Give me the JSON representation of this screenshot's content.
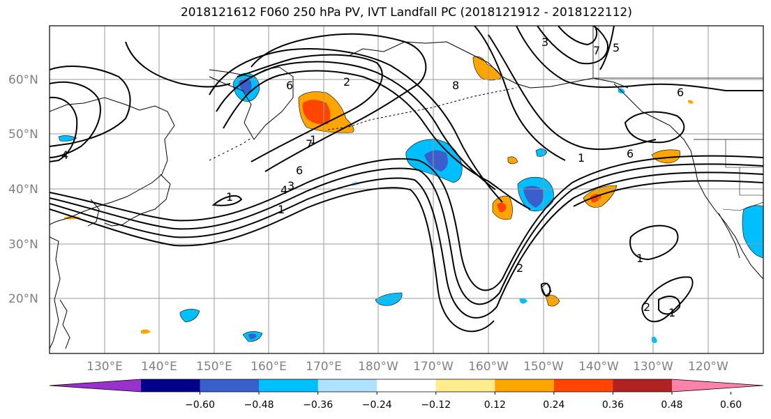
{
  "title": "2018121612 F060 250 hPa PV, IVT Landfall PC (2018121912 - 2018122112)",
  "lat_labels": [
    "60°N",
    "50°N",
    "40°N",
    "30°N",
    "20°N"
  ],
  "lon_labels": [
    "130°E",
    "140°E",
    "150°E",
    "160°E",
    "170°E",
    "180°W",
    "170°W",
    "160°W",
    "150°W",
    "140°W",
    "130°W",
    "120°W"
  ],
  "colorbar": {
    "colors": [
      "#9932cc",
      "#00008b",
      "#3a5fcd",
      "#00bfff",
      "#b0e2ff",
      "#ffffff",
      "#ffec8b",
      "#ffa500",
      "#ff4500",
      "#b22222",
      "#ff82ab"
    ],
    "tick_labels": [
      "−0.60",
      "−0.48",
      "−0.36",
      "−0.24",
      "−0.12",
      "0.12",
      "0.24",
      "0.36",
      "0.48",
      "0.60"
    ]
  },
  "contour_labels": [
    "2",
    "2",
    "1",
    "1",
    "1",
    "1",
    "1",
    "6",
    "6",
    "6",
    "4",
    "4",
    "3",
    "3",
    "5",
    "6",
    "7",
    "7",
    "8",
    "1",
    "2"
  ]
}
